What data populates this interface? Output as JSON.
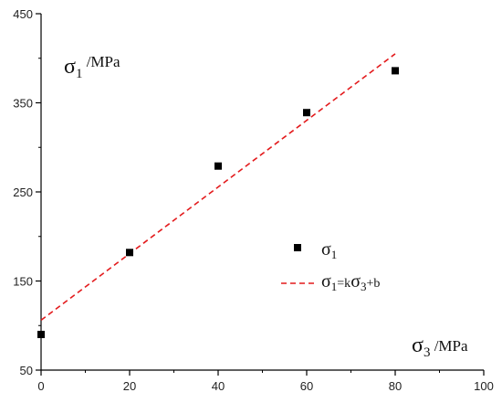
{
  "chart_data": {
    "type": "scatter",
    "title": "",
    "xlabel": {
      "symbol": "σ",
      "sub": "3",
      "unit": " /MPa"
    },
    "ylabel": {
      "symbol": "σ",
      "sub": "1",
      "unit": " /MPa"
    },
    "xlim": [
      0,
      100
    ],
    "ylim": [
      50,
      450
    ],
    "xticks": [
      0,
      20,
      40,
      60,
      80,
      100
    ],
    "yticks": [
      50,
      150,
      250,
      350,
      450
    ],
    "grid": false,
    "legend_position": "center-right",
    "series": [
      {
        "name": {
          "symbol": "σ",
          "sub": "1"
        },
        "kind": "points",
        "marker": "square",
        "color": "#000000",
        "x": [
          0,
          20,
          40,
          60,
          80
        ],
        "y": [
          90,
          182,
          279,
          339,
          386
        ]
      },
      {
        "name": {
          "lhs_symbol": "σ",
          "lhs_sub": "1",
          "eq": "=k",
          "rhs_symbol": "σ",
          "rhs_sub": "3",
          "tail": "+b"
        },
        "kind": "fit-line",
        "style": "dashed",
        "color": "#e31a1c",
        "x": [
          0,
          80
        ],
        "y": [
          106,
          405
        ]
      }
    ]
  }
}
